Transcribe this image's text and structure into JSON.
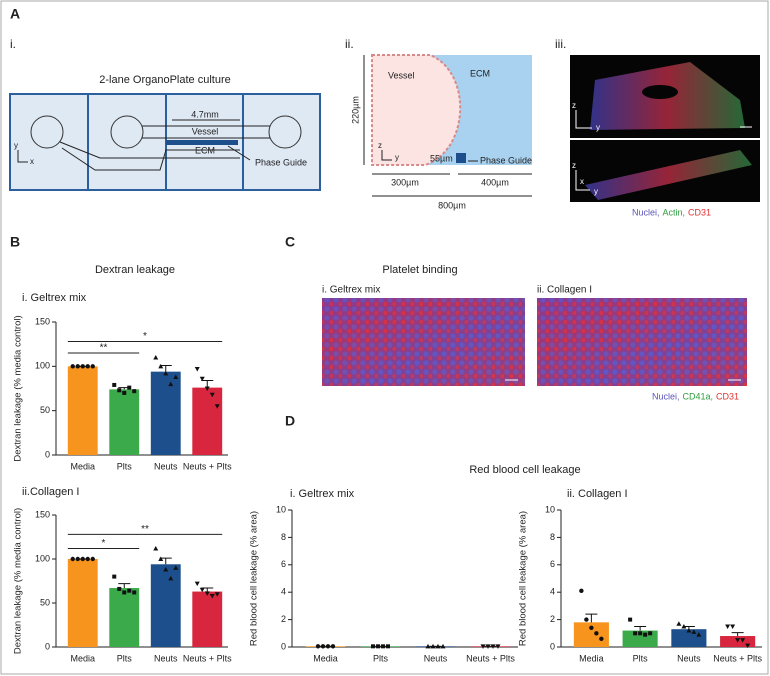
{
  "panel_a": {
    "label": "A",
    "i": {
      "label": "i.",
      "title": "2-lane OrganoPlate culture",
      "length": "4.7mm",
      "vessel": "Vessel",
      "ecm": "ECM",
      "phase_guide": "Phase Guide",
      "axis_y": "y",
      "axis_x": "x"
    },
    "ii": {
      "label": "ii.",
      "vessel": "Vessel",
      "ecm": "ECM",
      "height": "220µm",
      "axis_z": "z",
      "axis_y": "y",
      "guide_width": "55µm",
      "phase_guide": "Phase Guide",
      "vessel_width": "300µm",
      "ecm_width": "400µm",
      "total_width": "800µm"
    },
    "iii": {
      "label": "iii.",
      "top_axis_z": "z",
      "top_axis_y": "y",
      "bottom_axis_z": "z",
      "bottom_axis_x": "x",
      "bottom_axis_y": "y",
      "legend": [
        {
          "text": "Nuclei,",
          "color": "#5a55b8"
        },
        {
          "text": "Actin,",
          "color": "#2f9e3e"
        },
        {
          "text": "CD31",
          "color": "#e0302f"
        }
      ]
    }
  },
  "panel_b": {
    "label": "B",
    "title": "Dextran leakage"
  },
  "panel_c": {
    "label": "C",
    "title": "Platelet binding",
    "images": [
      "i. Geltrex mix",
      "ii. Collagen I"
    ],
    "legend": [
      {
        "text": "Nuclei,",
        "color": "#5a55b8"
      },
      {
        "text": "CD41a,",
        "color": "#2f9e3e"
      },
      {
        "text": "CD31",
        "color": "#e0302f"
      }
    ]
  },
  "panel_d": {
    "label": "D",
    "title": "Red blood cell leakage"
  },
  "chart_data": [
    {
      "type": "bar",
      "subtitle": "i. Geltrex mix",
      "ylabel": "Dextran leakage (% media control)",
      "categories": [
        "Media",
        "Plts",
        "Neuts",
        "Neuts + Plts"
      ],
      "values": [
        100,
        74,
        94,
        76
      ],
      "errors": [
        0,
        2,
        7,
        8
      ],
      "colors": [
        "#f7941d",
        "#3aaa4a",
        "#1d4f8c",
        "#d7263d"
      ],
      "markers": [
        "circle",
        "square",
        "triangle",
        "triangle-down"
      ],
      "points": [
        [
          100,
          100,
          100,
          100,
          100
        ],
        [
          79,
          73,
          70,
          76,
          72
        ],
        [
          110,
          100,
          92,
          80,
          88
        ],
        [
          97,
          86,
          75,
          68,
          55
        ]
      ],
      "significance": [
        {
          "from": "Media",
          "to": "Plts",
          "y": 115,
          "label": "**"
        },
        {
          "from": "Media",
          "to": "Neuts + Plts",
          "y": 128,
          "label": "*"
        }
      ],
      "ylim": [
        0,
        150
      ],
      "yticks": [
        0,
        50,
        100,
        150
      ]
    },
    {
      "type": "bar",
      "subtitle": "ii.Collagen I",
      "ylabel": "Dextran leakage (% media control)",
      "categories": [
        "Media",
        "Plts",
        "Neuts",
        "Neuts + Plts"
      ],
      "values": [
        100,
        67,
        94,
        63
      ],
      "errors": [
        0,
        5,
        7,
        4
      ],
      "colors": [
        "#f7941d",
        "#3aaa4a",
        "#1d4f8c",
        "#d7263d"
      ],
      "markers": [
        "circle",
        "square",
        "triangle",
        "triangle-down"
      ],
      "points": [
        [
          100,
          100,
          100,
          100,
          100
        ],
        [
          80,
          66,
          62,
          64,
          62
        ],
        [
          112,
          100,
          88,
          78,
          90
        ],
        [
          72,
          65,
          61,
          58,
          60
        ]
      ],
      "significance": [
        {
          "from": "Media",
          "to": "Plts",
          "y": 112,
          "label": "*"
        },
        {
          "from": "Media",
          "to": "Neuts + Plts",
          "y": 128,
          "label": "**"
        }
      ],
      "ylim": [
        0,
        150
      ],
      "yticks": [
        0,
        50,
        100,
        150
      ]
    },
    {
      "type": "bar",
      "subtitle": "i. Geltrex mix",
      "ylabel": "Red blood cell leakage (% area)",
      "categories": [
        "Media",
        "Plts",
        "Neuts",
        "Neuts + Plts"
      ],
      "values": [
        0.05,
        0.05,
        0.05,
        0.05
      ],
      "errors": [
        0,
        0,
        0,
        0
      ],
      "colors": [
        "#f7941d",
        "#3aaa4a",
        "#1d4f8c",
        "#d7263d"
      ],
      "markers": [
        "circle",
        "square",
        "triangle",
        "triangle-down"
      ],
      "points": [
        [
          0.05,
          0.05,
          0.05,
          0.05
        ],
        [
          0.05,
          0.05,
          0.05,
          0.05
        ],
        [
          0.05,
          0.05,
          0.05,
          0.05
        ],
        [
          0.05,
          0.05,
          0.05,
          0.05
        ]
      ],
      "significance": [],
      "ylim": [
        0,
        10
      ],
      "yticks": [
        0,
        2,
        4,
        6,
        8,
        10
      ]
    },
    {
      "type": "bar",
      "subtitle": "ii. Collagen I",
      "ylabel": "Red blood cell leakage (% area)",
      "categories": [
        "Media",
        "Plts",
        "Neuts",
        "Neuts + Plts"
      ],
      "values": [
        1.8,
        1.2,
        1.3,
        0.8
      ],
      "errors": [
        0.6,
        0.3,
        0.2,
        0.25
      ],
      "colors": [
        "#f7941d",
        "#3aaa4a",
        "#1d4f8c",
        "#d7263d"
      ],
      "markers": [
        "circle",
        "square",
        "triangle",
        "triangle-down"
      ],
      "points": [
        [
          4.1,
          2.0,
          1.4,
          1.0,
          0.6
        ],
        [
          2.0,
          1.0,
          1.0,
          0.9,
          1.0
        ],
        [
          1.7,
          1.5,
          1.2,
          1.1,
          0.9
        ],
        [
          1.5,
          1.5,
          0.5,
          0.5,
          0.1
        ]
      ],
      "significance": [],
      "ylim": [
        0,
        10
      ],
      "yticks": [
        0,
        2,
        4,
        6,
        8,
        10
      ]
    }
  ]
}
